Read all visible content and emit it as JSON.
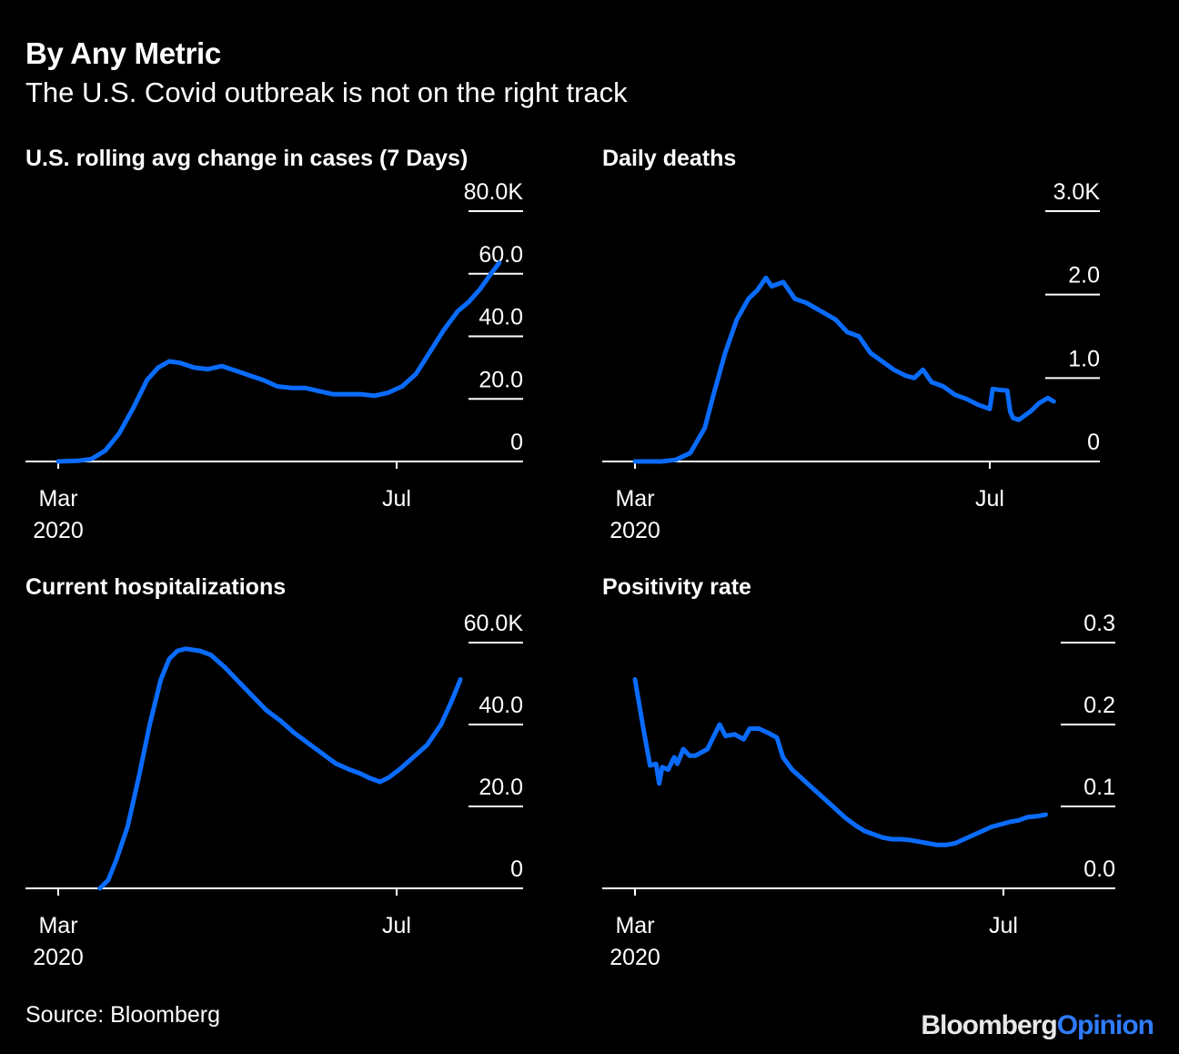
{
  "title": "By Any Metric",
  "subtitle": "The U.S. Covid outbreak is not on the right track",
  "source": "Source: Bloomberg",
  "logo": {
    "brand": "Bloomberg",
    "product": "Opinion"
  },
  "colors": {
    "line": "#0a6cff",
    "background": "#000000",
    "text": "#ffffff",
    "logo_accent": "#2f7bff"
  },
  "chart_data": [
    {
      "type": "line",
      "title": "U.S. rolling avg change in cases (7 Days)",
      "x_ticks": [
        {
          "day": 1,
          "label": "Mar",
          "sub": "2020"
        },
        {
          "day": 123,
          "label": "Jul",
          "sub": ""
        }
      ],
      "y_ticks": [
        {
          "value": 0,
          "label": "0"
        },
        {
          "value": 20,
          "label": "20.0"
        },
        {
          "value": 40,
          "label": "40.0"
        },
        {
          "value": 60,
          "label": "60.0"
        },
        {
          "value": 80,
          "label": "80.0K"
        }
      ],
      "ylim": [
        0,
        80
      ],
      "unit": "thousands",
      "series": [
        {
          "name": "rolling avg change in cases",
          "points": [
            [
              1,
              0
            ],
            [
              8,
              0.2
            ],
            [
              13,
              0.8
            ],
            [
              18,
              3.5
            ],
            [
              23,
              9
            ],
            [
              28,
              17
            ],
            [
              33,
              26
            ],
            [
              37,
              30
            ],
            [
              41,
              32
            ],
            [
              45,
              31.5
            ],
            [
              50,
              30
            ],
            [
              55,
              29.5
            ],
            [
              60,
              30.5
            ],
            [
              65,
              29
            ],
            [
              70,
              27.5
            ],
            [
              75,
              26
            ],
            [
              80,
              24
            ],
            [
              85,
              23.5
            ],
            [
              90,
              23.5
            ],
            [
              95,
              22.5
            ],
            [
              100,
              21.5
            ],
            [
              105,
              21.5
            ],
            [
              110,
              21.5
            ],
            [
              115,
              21
            ],
            [
              120,
              22
            ],
            [
              125,
              24
            ],
            [
              130,
              28
            ],
            [
              135,
              35
            ],
            [
              140,
              42
            ],
            [
              145,
              48
            ],
            [
              149,
              51
            ],
            [
              153,
              55
            ],
            [
              157,
              60
            ],
            [
              160,
              63.5
            ]
          ]
        }
      ]
    },
    {
      "type": "line",
      "title": "Daily deaths",
      "x_ticks": [
        {
          "day": 1,
          "label": "Mar",
          "sub": "2020"
        },
        {
          "day": 123,
          "label": "Jul",
          "sub": ""
        }
      ],
      "y_ticks": [
        {
          "value": 0,
          "label": "0"
        },
        {
          "value": 1,
          "label": "1.0"
        },
        {
          "value": 2,
          "label": "2.0"
        },
        {
          "value": 3,
          "label": "3.0K"
        }
      ],
      "ylim": [
        0,
        3
      ],
      "unit": "thousands",
      "series": [
        {
          "name": "daily deaths",
          "points": [
            [
              1,
              0
            ],
            [
              10,
              0
            ],
            [
              15,
              0.02
            ],
            [
              20,
              0.1
            ],
            [
              25,
              0.4
            ],
            [
              28,
              0.8
            ],
            [
              32,
              1.3
            ],
            [
              36,
              1.7
            ],
            [
              40,
              1.95
            ],
            [
              43,
              2.05
            ],
            [
              46,
              2.2
            ],
            [
              48,
              2.1
            ],
            [
              52,
              2.15
            ],
            [
              56,
              1.95
            ],
            [
              60,
              1.9
            ],
            [
              65,
              1.8
            ],
            [
              70,
              1.7
            ],
            [
              74,
              1.55
            ],
            [
              78,
              1.5
            ],
            [
              82,
              1.3
            ],
            [
              86,
              1.2
            ],
            [
              90,
              1.1
            ],
            [
              94,
              1.03
            ],
            [
              97,
              1.0
            ],
            [
              100,
              1.1
            ],
            [
              103,
              0.95
            ],
            [
              107,
              0.9
            ],
            [
              111,
              0.8
            ],
            [
              115,
              0.75
            ],
            [
              119,
              0.68
            ],
            [
              123,
              0.63
            ],
            [
              124,
              0.87
            ],
            [
              126,
              0.86
            ],
            [
              129,
              0.85
            ],
            [
              130,
              0.6
            ],
            [
              131,
              0.52
            ],
            [
              133,
              0.5
            ],
            [
              137,
              0.6
            ],
            [
              140,
              0.7
            ],
            [
              143,
              0.76
            ],
            [
              145,
              0.72
            ]
          ]
        }
      ]
    },
    {
      "type": "line",
      "title": "Current hospitalizations",
      "x_ticks": [
        {
          "day": 1,
          "label": "Mar",
          "sub": "2020"
        },
        {
          "day": 123,
          "label": "Jul",
          "sub": ""
        }
      ],
      "y_ticks": [
        {
          "value": 0,
          "label": "0"
        },
        {
          "value": 20,
          "label": "20.0"
        },
        {
          "value": 40,
          "label": "40.0"
        },
        {
          "value": 60,
          "label": "60.0K"
        }
      ],
      "ylim": [
        0,
        60
      ],
      "unit": "thousands",
      "series": [
        {
          "name": "current hospitalizations",
          "points": [
            [
              16,
              0
            ],
            [
              19,
              2
            ],
            [
              22,
              7
            ],
            [
              26,
              15
            ],
            [
              30,
              27
            ],
            [
              34,
              40
            ],
            [
              38,
              51
            ],
            [
              41,
              56
            ],
            [
              44,
              58
            ],
            [
              47,
              58.5
            ],
            [
              52,
              58
            ],
            [
              56,
              57
            ],
            [
              61,
              54
            ],
            [
              66,
              50.5
            ],
            [
              71,
              47
            ],
            [
              76,
              43.5
            ],
            [
              81,
              41
            ],
            [
              86,
              38
            ],
            [
              91,
              35.5
            ],
            [
              96,
              33
            ],
            [
              101,
              30.5
            ],
            [
              106,
              29
            ],
            [
              110,
              28
            ],
            [
              113,
              27
            ],
            [
              117,
              26
            ],
            [
              120,
              27
            ],
            [
              124,
              29
            ],
            [
              129,
              32
            ],
            [
              134,
              35
            ],
            [
              139,
              40
            ],
            [
              143,
              46
            ],
            [
              146,
              51
            ]
          ]
        }
      ]
    },
    {
      "type": "line",
      "title": "Positivity rate",
      "x_ticks": [
        {
          "day": 1,
          "label": "Mar",
          "sub": "2020"
        },
        {
          "day": 123,
          "label": "Jul",
          "sub": ""
        }
      ],
      "y_ticks": [
        {
          "value": 0,
          "label": "0.0"
        },
        {
          "value": 0.1,
          "label": "0.1"
        },
        {
          "value": 0.2,
          "label": "0.2"
        },
        {
          "value": 0.3,
          "label": "0.3"
        }
      ],
      "ylim": [
        0,
        0.3
      ],
      "unit": "fraction",
      "series": [
        {
          "name": "positivity rate",
          "points": [
            [
              1,
              0.255
            ],
            [
              4,
              0.19
            ],
            [
              6,
              0.15
            ],
            [
              8,
              0.152
            ],
            [
              9,
              0.128
            ],
            [
              10,
              0.148
            ],
            [
              12,
              0.145
            ],
            [
              14,
              0.16
            ],
            [
              15,
              0.152
            ],
            [
              17,
              0.17
            ],
            [
              19,
              0.162
            ],
            [
              21,
              0.162
            ],
            [
              25,
              0.17
            ],
            [
              27,
              0.185
            ],
            [
              29,
              0.2
            ],
            [
              31,
              0.186
            ],
            [
              34,
              0.188
            ],
            [
              37,
              0.182
            ],
            [
              39,
              0.195
            ],
            [
              42,
              0.195
            ],
            [
              45,
              0.19
            ],
            [
              48,
              0.184
            ],
            [
              50,
              0.16
            ],
            [
              53,
              0.145
            ],
            [
              56,
              0.135
            ],
            [
              59,
              0.125
            ],
            [
              62,
              0.115
            ],
            [
              65,
              0.105
            ],
            [
              68,
              0.095
            ],
            [
              71,
              0.085
            ],
            [
              74,
              0.077
            ],
            [
              77,
              0.07
            ],
            [
              80,
              0.066
            ],
            [
              83,
              0.062
            ],
            [
              86,
              0.06
            ],
            [
              89,
              0.06
            ],
            [
              92,
              0.059
            ],
            [
              95,
              0.057
            ],
            [
              98,
              0.055
            ],
            [
              101,
              0.053
            ],
            [
              104,
              0.053
            ],
            [
              107,
              0.055
            ],
            [
              110,
              0.06
            ],
            [
              113,
              0.065
            ],
            [
              116,
              0.07
            ],
            [
              119,
              0.075
            ],
            [
              122,
              0.078
            ],
            [
              125,
              0.081
            ],
            [
              128,
              0.083
            ],
            [
              131,
              0.087
            ],
            [
              134,
              0.088
            ],
            [
              137,
              0.09
            ]
          ]
        }
      ]
    }
  ]
}
